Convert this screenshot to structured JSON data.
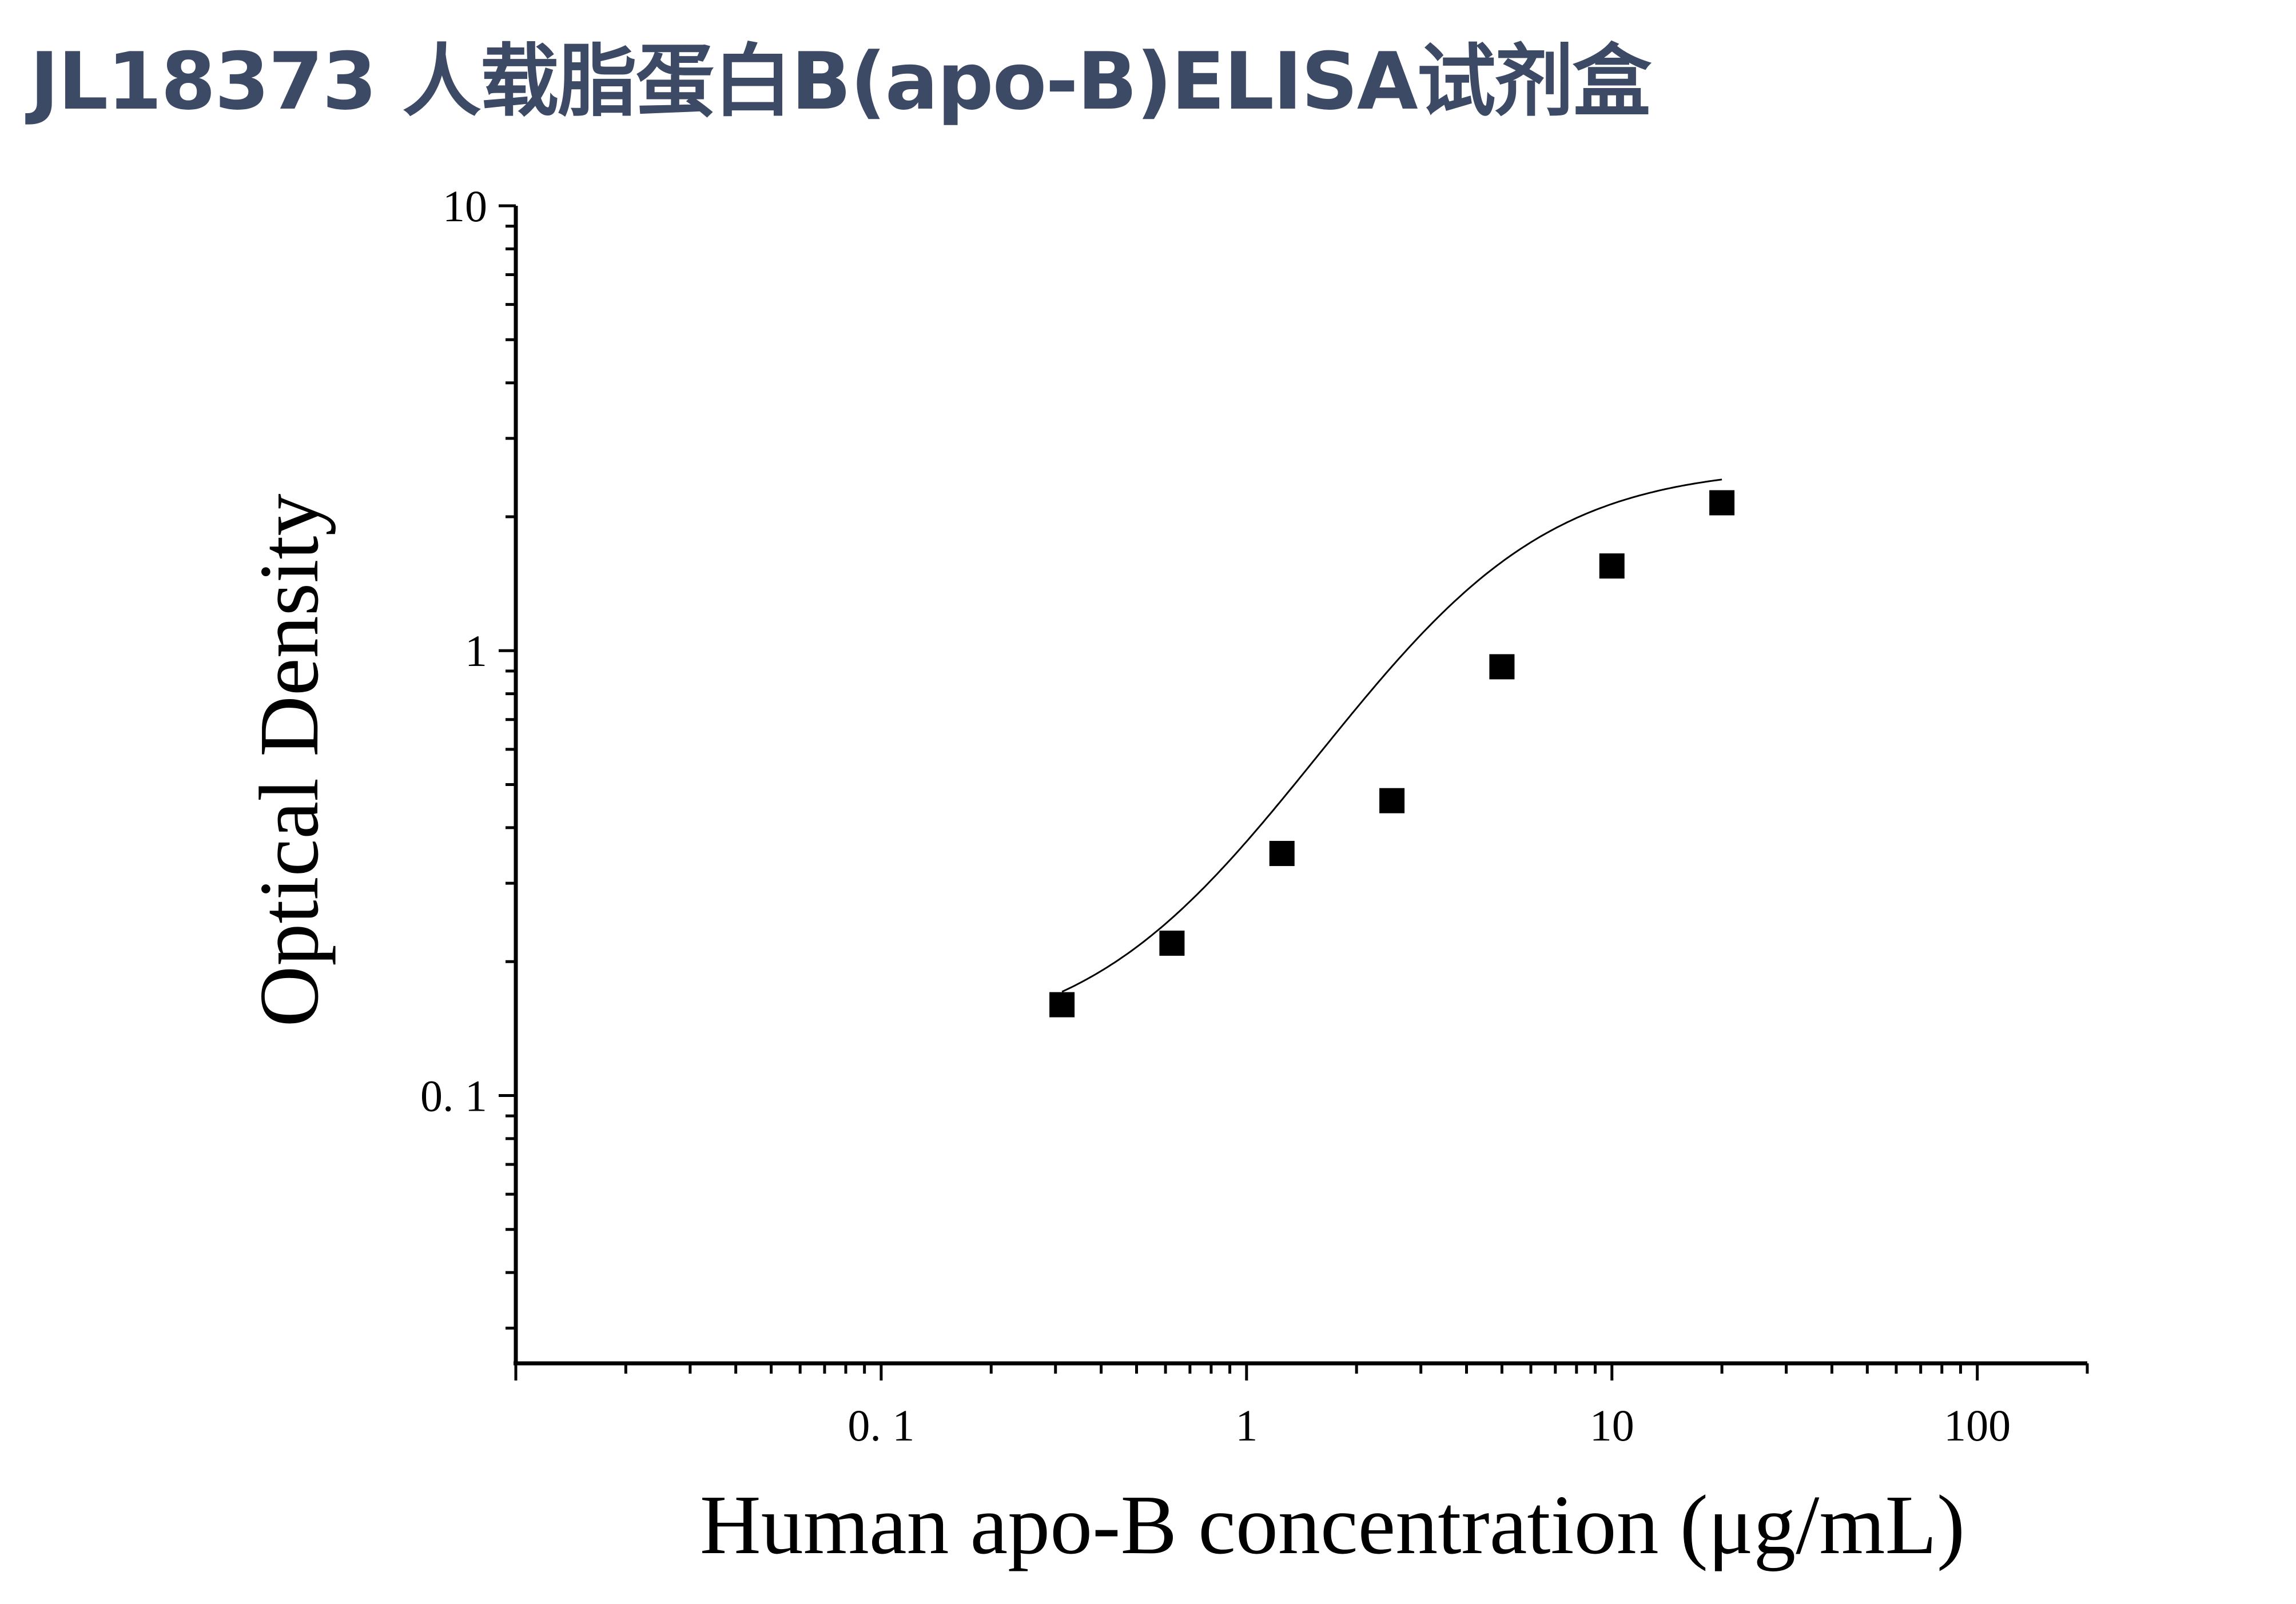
{
  "title": "JL18373 人载脂蛋白B(apo-B)ELISA试剂盒",
  "chart_data": {
    "type": "scatter",
    "xlabel": "Human apo-B concentration (μg/mL)",
    "ylabel": "Optical Density",
    "x_scale": "log",
    "y_scale": "log",
    "xlim": [
      0.01,
      200
    ],
    "ylim": [
      0.025,
      10
    ],
    "x_tick_labels": [
      {
        "value": 0.1,
        "label": "0. 1"
      },
      {
        "value": 1,
        "label": "1"
      },
      {
        "value": 10,
        "label": "10"
      },
      {
        "value": 100,
        "label": "100"
      }
    ],
    "y_tick_labels": [
      {
        "value": 0.1,
        "label": "0. 1"
      },
      {
        "value": 1,
        "label": "1"
      },
      {
        "value": 10,
        "label": "10"
      }
    ],
    "grid": false,
    "series": [
      {
        "marker": "square",
        "color": "#000000",
        "x": [
          0.3125,
          0.625,
          1.25,
          2.5,
          5,
          10,
          20
        ],
        "y": [
          0.16,
          0.22,
          0.35,
          0.46,
          0.92,
          1.55,
          2.15
        ]
      }
    ],
    "fit_curve": {
      "type": "4PL",
      "color": "#000000",
      "x_range": [
        0.3125,
        20
      ],
      "params": {
        "bottom": 0.13,
        "top": 2.6,
        "ec50": 4.0,
        "hill": 1.6
      }
    }
  }
}
